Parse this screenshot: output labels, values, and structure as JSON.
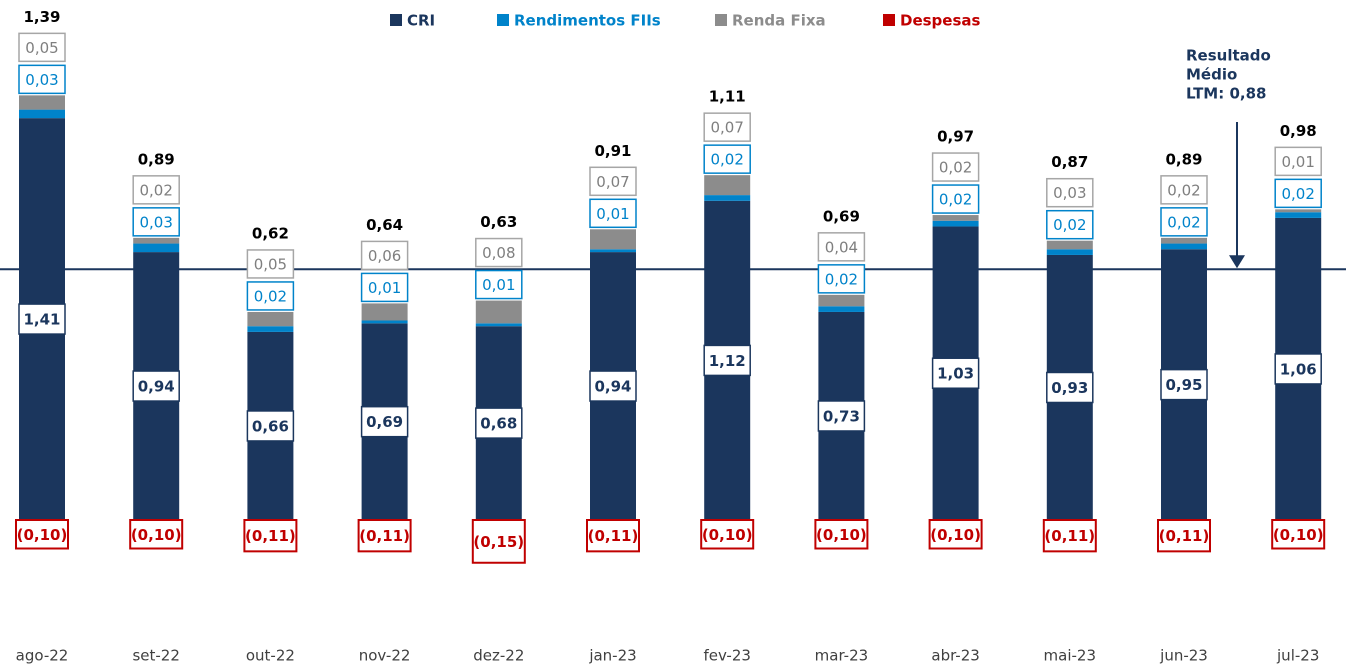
{
  "chart_data": {
    "type": "stacked_bar",
    "categories": [
      "ago-22",
      "set-22",
      "out-22",
      "nov-22",
      "dez-22",
      "jan-23",
      "fev-23",
      "mar-23",
      "abr-23",
      "mai-23",
      "jun-23",
      "jul-23"
    ],
    "series": [
      {
        "name": "CRI",
        "color": "#1b365d",
        "values": [
          1.41,
          0.94,
          0.66,
          0.69,
          0.68,
          0.94,
          1.12,
          0.73,
          1.03,
          0.93,
          0.95,
          1.06
        ],
        "value_labels": [
          "1,41",
          "0,94",
          "0,66",
          "0,69",
          "0,68",
          "0,94",
          "1,12",
          "0,73",
          "1,03",
          "0,93",
          "0,95",
          "1,06"
        ]
      },
      {
        "name": "Rendimentos FIIs",
        "color": "#0083ca",
        "values": [
          0.03,
          0.03,
          0.02,
          0.01,
          0.01,
          0.01,
          0.02,
          0.02,
          0.02,
          0.02,
          0.02,
          0.02
        ],
        "value_labels": [
          "0,03",
          "0,03",
          "0,02",
          "0,01",
          "0,01",
          "0,01",
          "0,02",
          "0,02",
          "0,02",
          "0,02",
          "0,02",
          "0,02"
        ]
      },
      {
        "name": "Renda Fixa",
        "color": "#8c8c8c",
        "values": [
          0.05,
          0.02,
          0.05,
          0.06,
          0.08,
          0.07,
          0.07,
          0.04,
          0.02,
          0.03,
          0.02,
          0.01
        ],
        "value_labels": [
          "0,05",
          "0,02",
          "0,05",
          "0,06",
          "0,08",
          "0,07",
          "0,07",
          "0,04",
          "0,02",
          "0,03",
          "0,02",
          "0,01"
        ]
      },
      {
        "name": "Despesas",
        "color": "#c00000",
        "values": [
          -0.1,
          -0.1,
          -0.11,
          -0.11,
          -0.15,
          -0.11,
          -0.1,
          -0.1,
          -0.1,
          -0.11,
          -0.11,
          -0.1
        ],
        "value_labels": [
          "(0,10)",
          "(0,10)",
          "(0,11)",
          "(0,11)",
          "(0,15)",
          "(0,11)",
          "(0,10)",
          "(0,10)",
          "(0,10)",
          "(0,11)",
          "(0,11)",
          "(0,10)"
        ]
      }
    ],
    "totals": {
      "values": [
        1.39,
        0.89,
        0.62,
        0.64,
        0.63,
        0.91,
        1.11,
        0.69,
        0.97,
        0.87,
        0.89,
        0.98
      ],
      "value_labels": [
        "1,39",
        "0,89",
        "0,62",
        "0,64",
        "0,63",
        "0,91",
        "1,11",
        "0,69",
        "0,97",
        "0,87",
        "0,89",
        "0,98"
      ]
    },
    "average": {
      "value": 0.88,
      "annotation": [
        "Resultado",
        "Médio",
        "LTM: 0,88"
      ]
    },
    "legend": "top"
  }
}
